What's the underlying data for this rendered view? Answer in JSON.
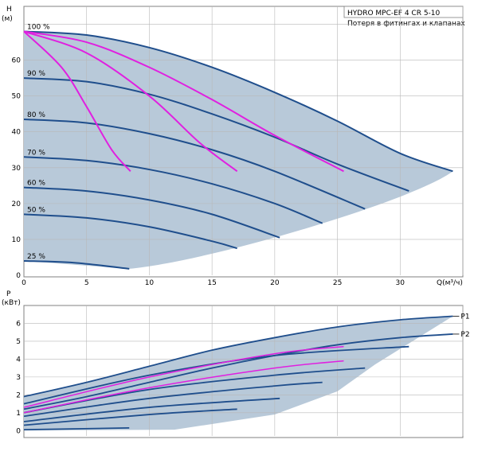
{
  "chart_data": [
    {
      "type": "line",
      "title": "HYDRO MPC-EF 4 CR 5-10",
      "subtitle": "Потеря в фитингах и клапанах",
      "ylabel": "H",
      "yunit": "(м)",
      "xlabel": "Q(м³/ч)",
      "xlim": [
        0,
        35
      ],
      "ylim": [
        0,
        75
      ],
      "xticks": [
        "0",
        "5",
        "10",
        "15",
        "20",
        "25",
        "30"
      ],
      "yticks": [
        "0",
        "10",
        "20",
        "30",
        "40",
        "50",
        "60"
      ],
      "grid": true,
      "curves": [
        {
          "label": "100 %",
          "x": [
            0,
            5,
            10,
            15,
            20,
            25,
            30,
            34.2
          ],
          "y": [
            68,
            67,
            63.5,
            58,
            51,
            43,
            34,
            29
          ]
        },
        {
          "label": "90 %",
          "x": [
            0,
            5,
            10,
            15,
            20,
            25,
            30.7
          ],
          "y": [
            55,
            54,
            50.5,
            45,
            38.5,
            31,
            23.5
          ]
        },
        {
          "label": "80 %",
          "x": [
            0,
            5,
            10,
            15,
            20,
            27.2
          ],
          "y": [
            43.5,
            42.5,
            39.5,
            35,
            29,
            18.5
          ]
        },
        {
          "label": "70 %",
          "x": [
            0,
            5,
            10,
            15,
            20,
            23.8
          ],
          "y": [
            33,
            32,
            29.5,
            25.5,
            20,
            14.5
          ]
        },
        {
          "label": "60 %",
          "x": [
            0,
            5,
            10,
            15,
            20.4
          ],
          "y": [
            24.5,
            23.5,
            21,
            17,
            10.5
          ]
        },
        {
          "label": "50 %",
          "x": [
            0,
            5,
            10,
            15,
            17
          ],
          "y": [
            17,
            16,
            13.5,
            9.5,
            7.5
          ]
        },
        {
          "label": "25 %",
          "x": [
            0,
            4,
            8.4
          ],
          "y": [
            4,
            3.5,
            1.8
          ]
        }
      ],
      "system_curves": [
        {
          "x": [
            0,
            3,
            5,
            7,
            8.5
          ],
          "y": [
            68,
            58,
            47,
            35,
            29
          ]
        },
        {
          "x": [
            0,
            5,
            10,
            14,
            17
          ],
          "y": [
            68,
            62,
            50,
            37,
            29
          ]
        },
        {
          "x": [
            0,
            5,
            10,
            15,
            20,
            25.5
          ],
          "y": [
            68,
            65,
            58,
            49,
            39,
            29
          ]
        }
      ]
    },
    {
      "type": "line",
      "ylabel": "P",
      "yunit": "(кВт)",
      "xlim": [
        0,
        35
      ],
      "ylim": [
        -0.3,
        7
      ],
      "yticks": [
        "0",
        "1",
        "2",
        "3",
        "4",
        "5",
        "6"
      ],
      "grid": true,
      "legend": [
        "P1",
        "P2"
      ],
      "curves": [
        {
          "name": "P1",
          "x": [
            0,
            5,
            10,
            15,
            20,
            25,
            30,
            34.2
          ],
          "y": [
            1.9,
            2.7,
            3.6,
            4.5,
            5.2,
            5.8,
            6.2,
            6.4
          ]
        },
        {
          "name": "P2",
          "x": [
            0,
            5,
            10,
            15,
            20,
            25,
            30,
            34.2
          ],
          "y": [
            1.2,
            1.9,
            2.7,
            3.5,
            4.2,
            4.8,
            5.2,
            5.4
          ]
        },
        {
          "x": [
            0,
            10,
            20,
            30.7
          ],
          "y": [
            1.5,
            3.1,
            4.2,
            4.7
          ]
        },
        {
          "x": [
            0,
            10,
            20,
            27.2
          ],
          "y": [
            1.0,
            2.3,
            3.1,
            3.5
          ]
        },
        {
          "x": [
            0,
            10,
            20,
            23.8
          ],
          "y": [
            0.8,
            1.8,
            2.5,
            2.7
          ]
        },
        {
          "x": [
            0,
            10,
            20.4
          ],
          "y": [
            0.5,
            1.3,
            1.8
          ]
        },
        {
          "x": [
            0,
            10,
            17
          ],
          "y": [
            0.3,
            0.9,
            1.2
          ]
        },
        {
          "x": [
            0,
            8.4
          ],
          "y": [
            0.05,
            0.15
          ]
        }
      ],
      "magenta_curves": [
        {
          "x": [
            0,
            10,
            20,
            25.5
          ],
          "y": [
            1.3,
            3.0,
            4.3,
            4.7
          ]
        },
        {
          "x": [
            0,
            10,
            20,
            25.5
          ],
          "y": [
            1.0,
            2.4,
            3.5,
            3.9
          ]
        }
      ]
    }
  ],
  "colors": {
    "envelope": "#b8c9d9",
    "curve": "#1f4e8c",
    "system": "#e020e0",
    "grid": "#b8b8b8"
  }
}
